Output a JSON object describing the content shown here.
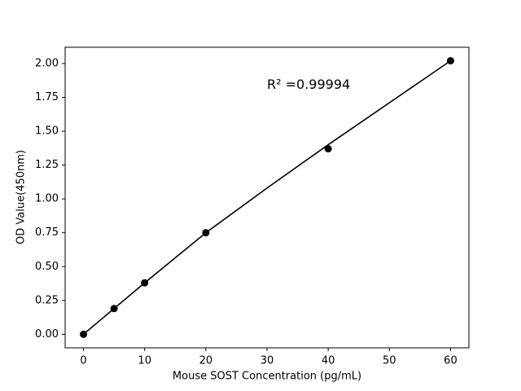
{
  "chart_data": {
    "type": "scatter",
    "xlabel": "Mouse SOST Concentration (pg/mL)",
    "ylabel": "OD Value(450nm)",
    "annotation": {
      "text": "R² =0.99994",
      "x": 30,
      "y": 1.84
    },
    "x": [
      0,
      5,
      10,
      20,
      40,
      60
    ],
    "series": [
      {
        "color": "#000000",
        "mode": "markers",
        "values": [
          0.0,
          0.19,
          0.38,
          0.75,
          1.37,
          2.02
        ]
      },
      {
        "color": "#000000",
        "mode": "line",
        "x": [
          0,
          5,
          10,
          20,
          30,
          40,
          50,
          60
        ],
        "values": [
          0.0,
          0.19,
          0.38,
          0.75,
          1.08,
          1.4,
          1.71,
          2.02
        ]
      }
    ],
    "xlim": [
      -3,
      63
    ],
    "ylim": [
      -0.1,
      2.12
    ],
    "xticks": [
      0,
      10,
      20,
      30,
      40,
      50,
      60
    ],
    "yticks": [
      {
        "value": 0,
        "label": "0.00"
      },
      {
        "value": 0.25,
        "label": "0.25"
      },
      {
        "value": 0.5,
        "label": "0.50"
      },
      {
        "value": 0.75,
        "label": "0.75"
      },
      {
        "value": 1,
        "label": "1.00"
      },
      {
        "value": 1.25,
        "label": "1.25"
      },
      {
        "value": 1.5,
        "label": "1.50"
      },
      {
        "value": 1.75,
        "label": "1.75"
      },
      {
        "value": 2,
        "label": "2.00"
      }
    ]
  }
}
